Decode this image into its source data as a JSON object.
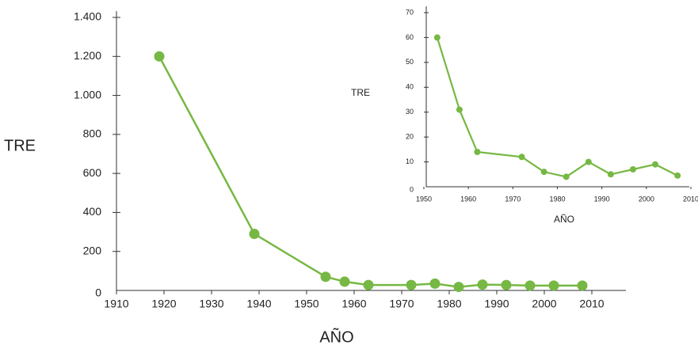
{
  "chart_data": [
    {
      "type": "line",
      "x_label": "AÑO",
      "y_label": "TRE",
      "color": "#76b843",
      "x": [
        1919,
        1939,
        1954,
        1958,
        1963,
        1972,
        1977,
        1982,
        1987,
        1992,
        1997,
        2002,
        2008
      ],
      "values": [
        1200,
        290,
        70,
        45,
        28,
        28,
        35,
        18,
        30,
        28,
        25,
        25,
        25
      ],
      "xlim": [
        1910,
        2010
      ],
      "xticks": [
        1910,
        1920,
        1930,
        1940,
        1950,
        1960,
        1970,
        1980,
        1990,
        2000,
        2010
      ],
      "ylim": [
        0,
        1400
      ],
      "yticks": [
        0,
        200,
        400,
        600,
        800,
        {
          "value": 1000,
          "label": "1.000"
        },
        {
          "value": 1200,
          "label": "1.200"
        },
        {
          "value": 1400,
          "label": "1.400"
        }
      ]
    },
    {
      "type": "line",
      "x_label": "AÑO",
      "y_label": "TRE",
      "color": "#76b843",
      "x": [
        1953,
        1958,
        1962,
        1972,
        1977,
        1982,
        1987,
        1992,
        1997,
        2002,
        2007
      ],
      "values": [
        60,
        31,
        14,
        12,
        6,
        4,
        10,
        5,
        7,
        9,
        4.5
      ],
      "xlim": [
        1950,
        2010
      ],
      "xticks": [
        1950,
        1960,
        1970,
        1980,
        1990,
        2000,
        2010
      ],
      "ylim": [
        0,
        70
      ],
      "yticks": [
        0,
        10,
        20,
        30,
        40,
        50,
        60,
        70
      ]
    }
  ]
}
